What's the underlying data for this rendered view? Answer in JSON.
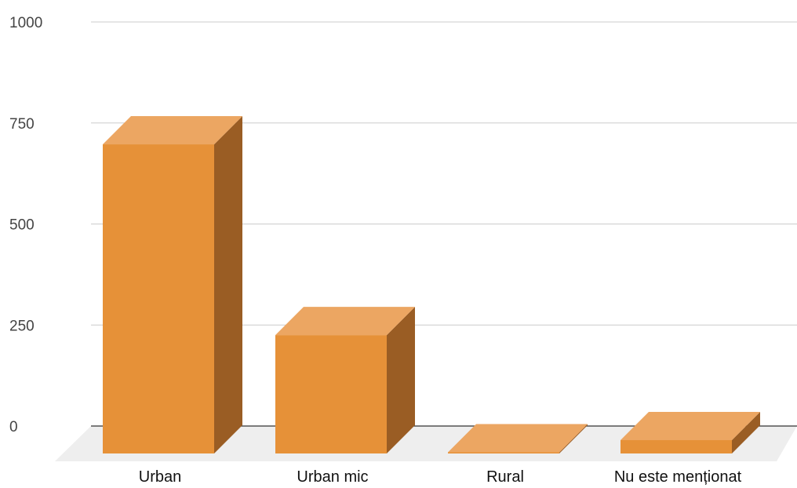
{
  "chart_data": {
    "type": "bar",
    "categories": [
      "Urban",
      "Urban mic",
      "Rural",
      "Nu este menționat"
    ],
    "values": [
      765,
      293,
      3,
      33
    ],
    "ylim": [
      0,
      1000
    ],
    "yticks": [
      "0",
      "250",
      "500",
      "750",
      "1000"
    ],
    "title": "",
    "xlabel": "",
    "ylabel": "",
    "grid": true,
    "legend": "none",
    "style": "3d",
    "colors": {
      "front": "#E69138",
      "top": "#ECA662",
      "side": "#9A5D24",
      "floor": "#EEEEEE",
      "grid": "#CCCCCC",
      "axis": "#333333"
    }
  }
}
